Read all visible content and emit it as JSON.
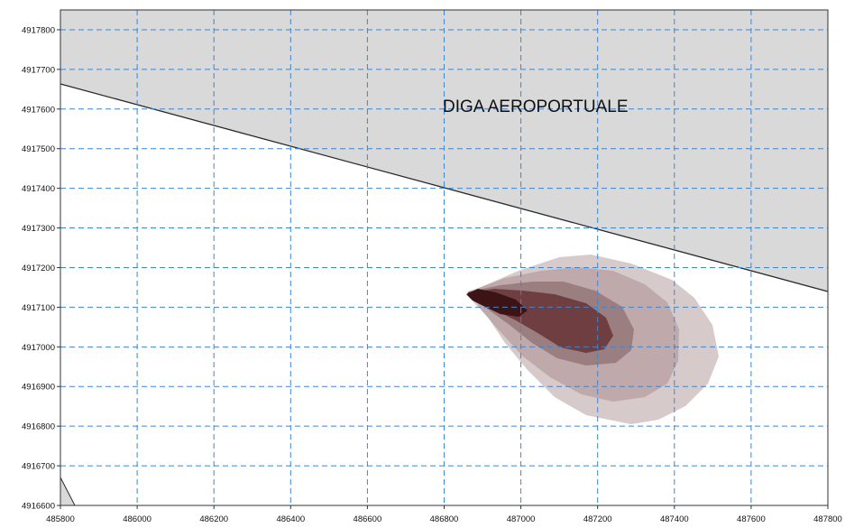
{
  "map": {
    "x_ticks": [
      "485800",
      "486000",
      "486200",
      "486400",
      "486600",
      "486800",
      "487000",
      "487200",
      "487400",
      "487600",
      "487800"
    ],
    "y_ticks": [
      "4916600",
      "4916700",
      "4916800",
      "4916900",
      "4917000",
      "4917100",
      "4917200",
      "4917300",
      "4917400",
      "4917500",
      "4917600",
      "4917700",
      "4917800"
    ],
    "x_range": [
      485800,
      487800
    ],
    "y_range": [
      4916600,
      4917850
    ],
    "grid": "dashed",
    "area_label": "DIGA AEROPORTUALE",
    "colors": {
      "land": "#d9d9d9",
      "water": "#ffffff",
      "grid": "#3a86d8",
      "contour_levels": [
        "#d6cacb",
        "#bfa9ab",
        "#9b7e80",
        "#6e3e40",
        "#3c1416"
      ]
    }
  }
}
